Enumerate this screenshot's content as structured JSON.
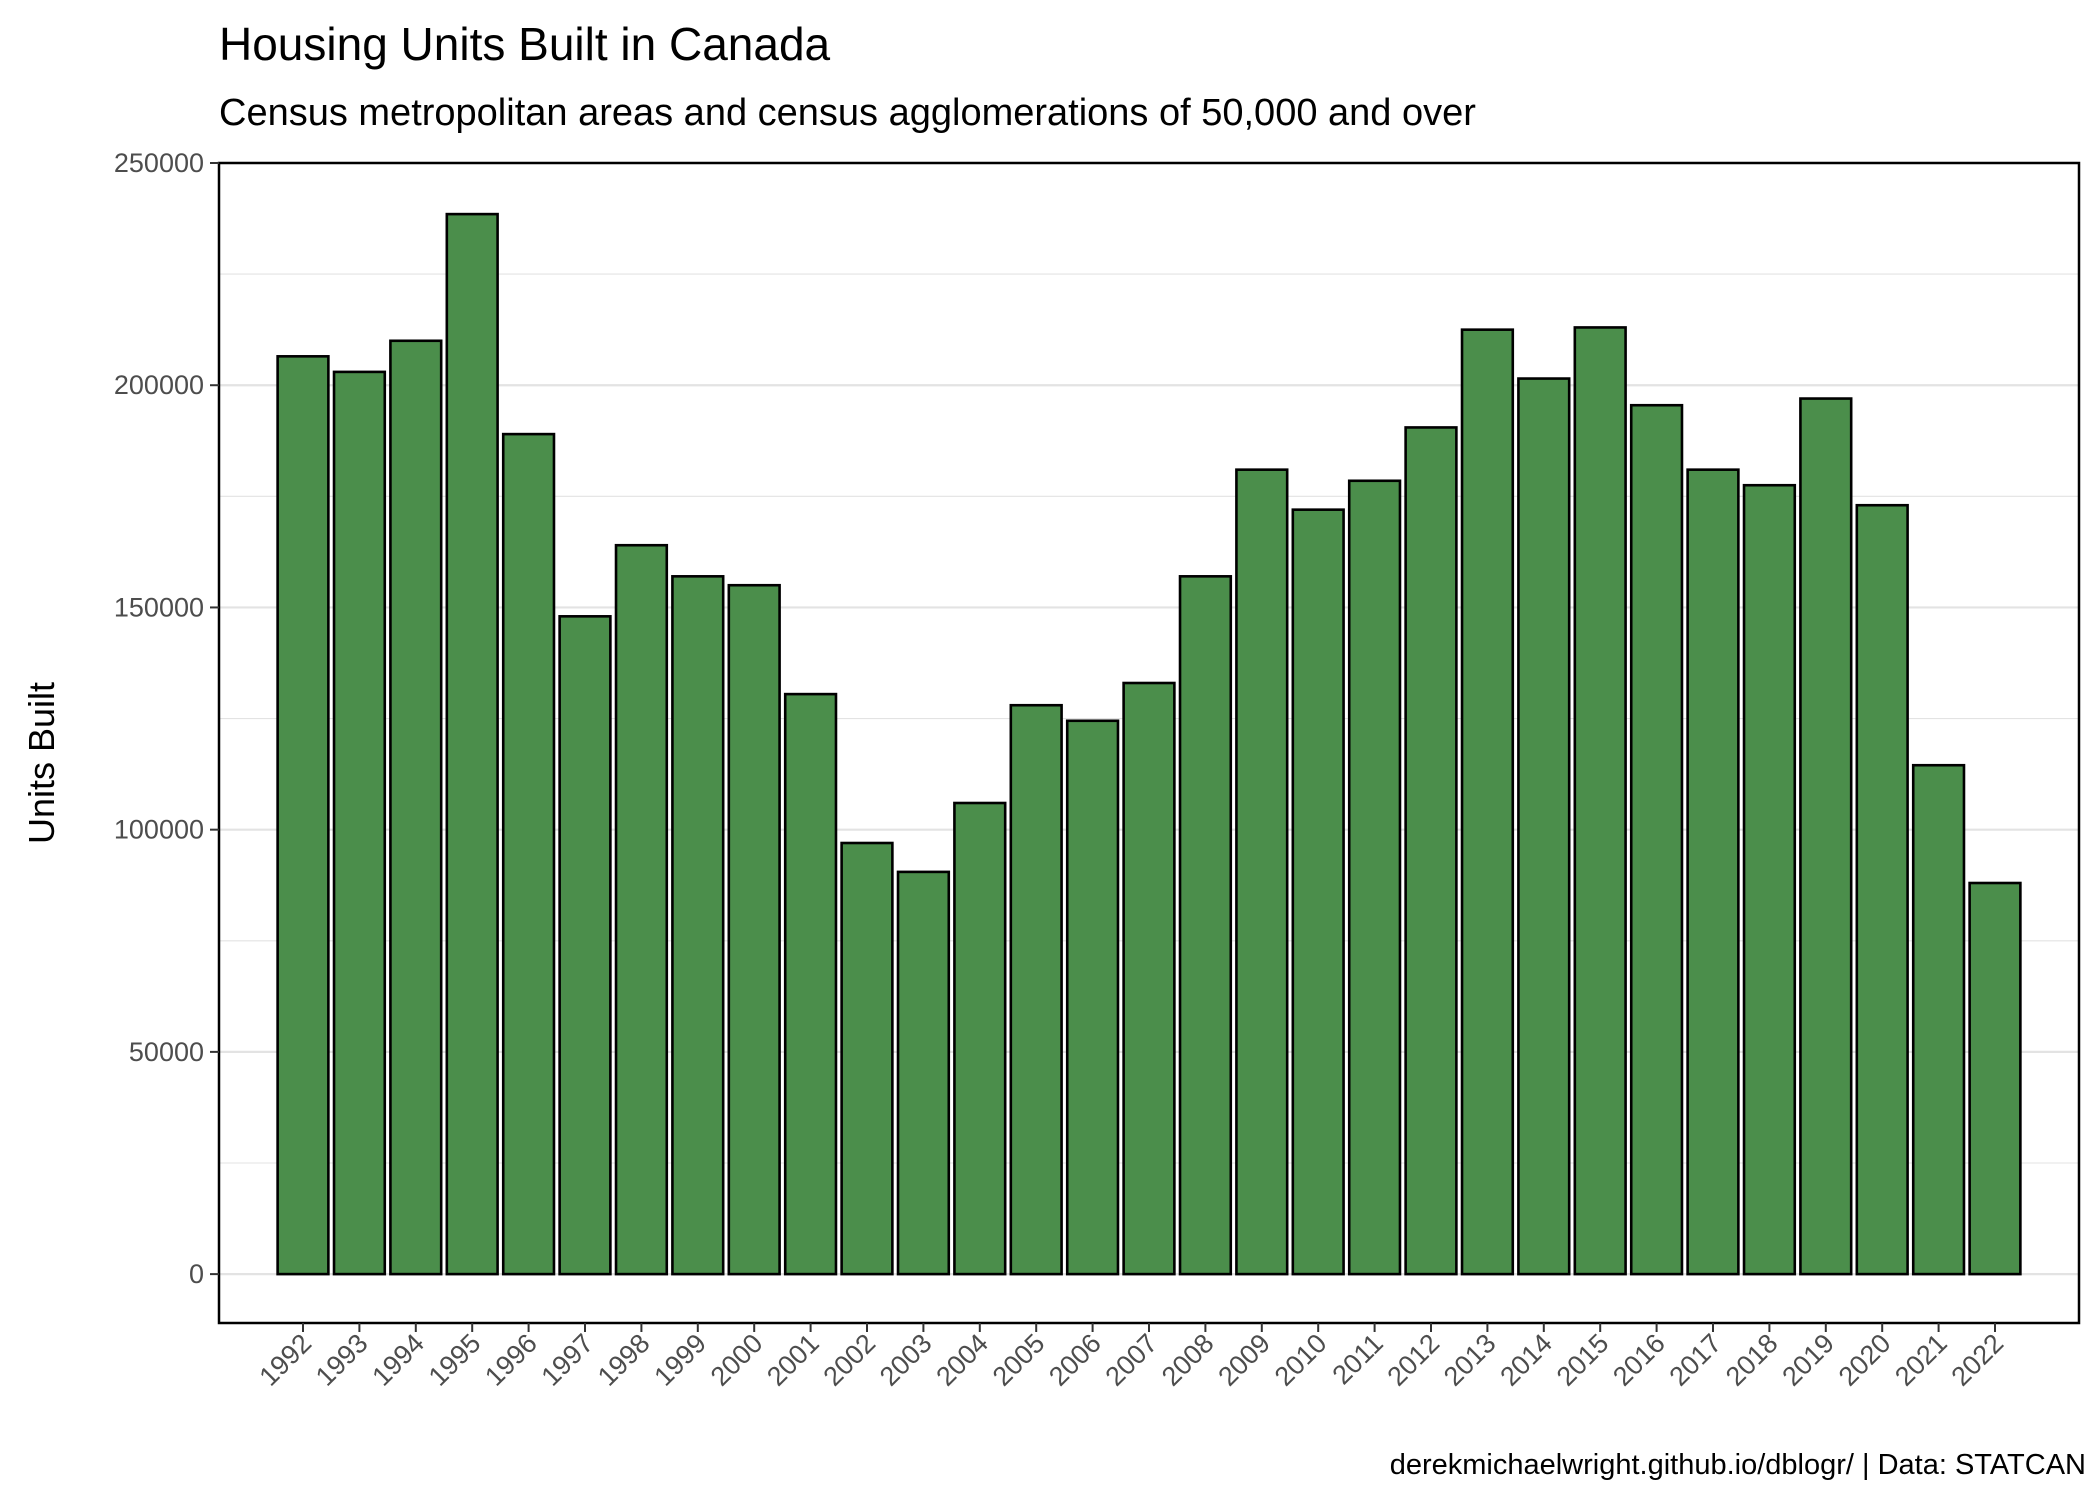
{
  "chart_data": {
    "type": "bar",
    "title": "Housing Units Built in Canada",
    "subtitle": "Census metropolitan areas and census agglomerations of 50,000 and over",
    "ylabel": "Units Built",
    "caption": "derekmichaelwright.github.io/dblogr/ | Data: STATCAN",
    "ylim": [
      -11000,
      250000
    ],
    "yticks": [
      "0",
      "50000",
      "100000",
      "150000",
      "200000",
      "250000"
    ],
    "grid": true,
    "legend": "none",
    "colors": {
      "bar_fill": "#4b8e4b",
      "bar_stroke": "#000000",
      "grid": "#e3e3e3",
      "panel_border": "#000000"
    },
    "categories": [
      "1992",
      "1993",
      "1994",
      "1995",
      "1996",
      "1997",
      "1998",
      "1999",
      "2000",
      "2001",
      "2002",
      "2003",
      "2004",
      "2005",
      "2006",
      "2007",
      "2008",
      "2009",
      "2010",
      "2011",
      "2012",
      "2013",
      "2014",
      "2015",
      "2016",
      "2017",
      "2018",
      "2019",
      "2020",
      "2021",
      "2022"
    ],
    "values": [
      206500,
      203000,
      210000,
      238500,
      189000,
      148000,
      164000,
      157000,
      155000,
      130500,
      97000,
      90500,
      106000,
      128000,
      124500,
      133000,
      157000,
      181000,
      172000,
      178500,
      190500,
      212500,
      201500,
      213000,
      195500,
      181000,
      177500,
      197000,
      173000,
      114500,
      88000
    ]
  }
}
